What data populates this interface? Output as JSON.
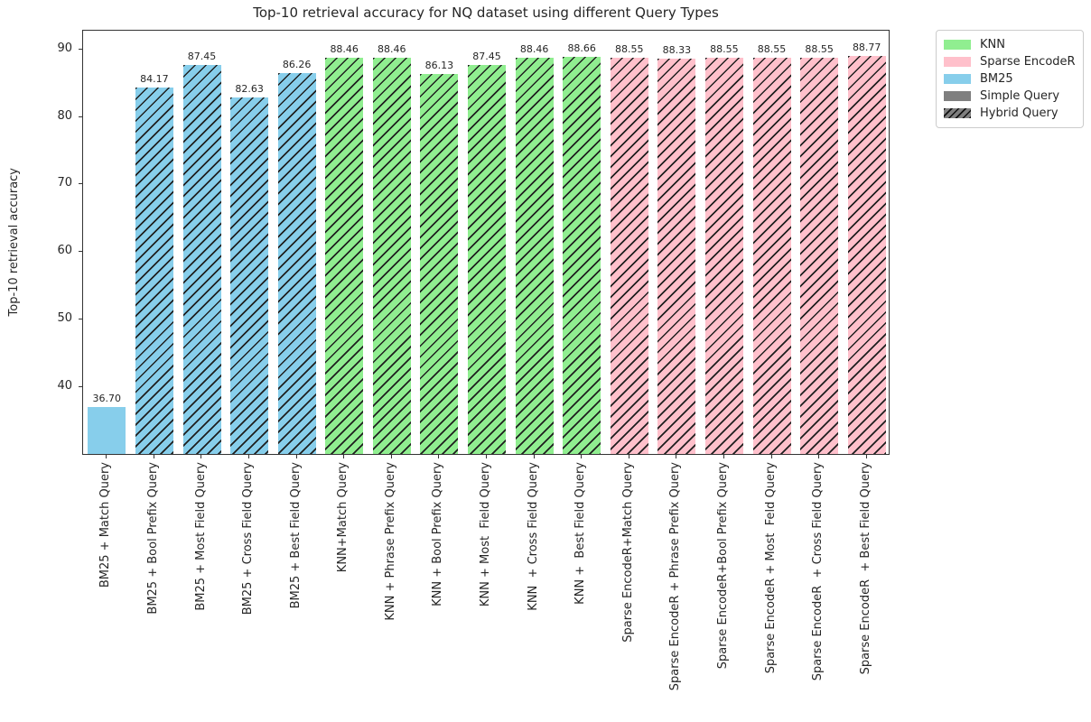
{
  "chart_data": {
    "type": "bar",
    "title": "Top-10 retrieval accuracy for NQ dataset using different Query Types",
    "xlabel": "",
    "ylabel": "Top-10 retrieval accuracy",
    "ylim": [
      29.8,
      92.8
    ],
    "yticks": [
      40,
      50,
      60,
      70,
      80,
      90
    ],
    "grid": false,
    "legend": {
      "location": "outside-upper-right",
      "entries": [
        {
          "label": "KNN",
          "color": "#90ee90",
          "hatched": false
        },
        {
          "label": "Sparse EncodeR",
          "color": "#ffc0cb",
          "hatched": false
        },
        {
          "label": "BM25",
          "color": "#87ceeb",
          "hatched": false
        },
        {
          "label": "Simple Query",
          "color": "#7f7f7f",
          "hatched": false
        },
        {
          "label": "Hybrid Query",
          "color": "#7f7f7f",
          "hatched": true
        }
      ]
    },
    "hatch_pattern": "//",
    "bars": [
      {
        "category": "BM25 + Match Query",
        "value": 36.7,
        "value_label": "36.70",
        "group": "BM25",
        "query_type": "Simple Query",
        "color": "#87ceeb",
        "hatched": false
      },
      {
        "category": "BM25 + Bool Prefix Query",
        "value": 84.17,
        "value_label": "84.17",
        "group": "BM25",
        "query_type": "Hybrid Query",
        "color": "#87ceeb",
        "hatched": true
      },
      {
        "category": "BM25 + Most Field Query",
        "value": 87.45,
        "value_label": "87.45",
        "group": "BM25",
        "query_type": "Hybrid Query",
        "color": "#87ceeb",
        "hatched": true
      },
      {
        "category": "BM25 + Cross Field Query",
        "value": 82.63,
        "value_label": "82.63",
        "group": "BM25",
        "query_type": "Hybrid Query",
        "color": "#87ceeb",
        "hatched": true
      },
      {
        "category": "BM25 + Best Field Query",
        "value": 86.26,
        "value_label": "86.26",
        "group": "BM25",
        "query_type": "Hybrid Query",
        "color": "#87ceeb",
        "hatched": true
      },
      {
        "category": "KNN+Match Query",
        "value": 88.46,
        "value_label": "88.46",
        "group": "KNN",
        "query_type": "Hybrid Query",
        "color": "#90ee90",
        "hatched": true
      },
      {
        "category": "KNN + Phrase Prefix Query",
        "value": 88.46,
        "value_label": "88.46",
        "group": "KNN",
        "query_type": "Hybrid Query",
        "color": "#90ee90",
        "hatched": true
      },
      {
        "category": "KNN + Bool Prefix Query",
        "value": 86.13,
        "value_label": "86.13",
        "group": "KNN",
        "query_type": "Hybrid Query",
        "color": "#90ee90",
        "hatched": true
      },
      {
        "category": "KNN + Most  Field Query",
        "value": 87.45,
        "value_label": "87.45",
        "group": "KNN",
        "query_type": "Hybrid Query",
        "color": "#90ee90",
        "hatched": true
      },
      {
        "category": "KNN  + Cross Field Query",
        "value": 88.46,
        "value_label": "88.46",
        "group": "KNN",
        "query_type": "Hybrid Query",
        "color": "#90ee90",
        "hatched": true
      },
      {
        "category": "KNN +  Best Field Query",
        "value": 88.66,
        "value_label": "88.66",
        "group": "KNN",
        "query_type": "Hybrid Query",
        "color": "#90ee90",
        "hatched": true
      },
      {
        "category": "Sparse EncodeR+Match Query",
        "value": 88.55,
        "value_label": "88.55",
        "group": "Sparse EncodeR",
        "query_type": "Hybrid Query",
        "color": "#ffc0cb",
        "hatched": true
      },
      {
        "category": "Sparse EncodeR + Phrase Prefix Query",
        "value": 88.33,
        "value_label": "88.33",
        "group": "Sparse EncodeR",
        "query_type": "Hybrid Query",
        "color": "#ffc0cb",
        "hatched": true
      },
      {
        "category": "Sparse EncodeR+Bool Prefix Query",
        "value": 88.55,
        "value_label": "88.55",
        "group": "Sparse EncodeR",
        "query_type": "Hybrid Query",
        "color": "#ffc0cb",
        "hatched": true
      },
      {
        "category": "Sparse EncodeR + Most  Feld Query",
        "value": 88.55,
        "value_label": "88.55",
        "group": "Sparse EncodeR",
        "query_type": "Hybrid Query",
        "color": "#ffc0cb",
        "hatched": true
      },
      {
        "category": "Sparse EncodeR  + Cross Field Query",
        "value": 88.55,
        "value_label": "88.55",
        "group": "Sparse EncodeR",
        "query_type": "Hybrid Query",
        "color": "#ffc0cb",
        "hatched": true
      },
      {
        "category": "Sparse EncodeR  + Best Field Query",
        "value": 88.77,
        "value_label": "88.77",
        "group": "Sparse EncodeR",
        "query_type": "Hybrid Query",
        "color": "#ffc0cb",
        "hatched": true
      }
    ]
  }
}
